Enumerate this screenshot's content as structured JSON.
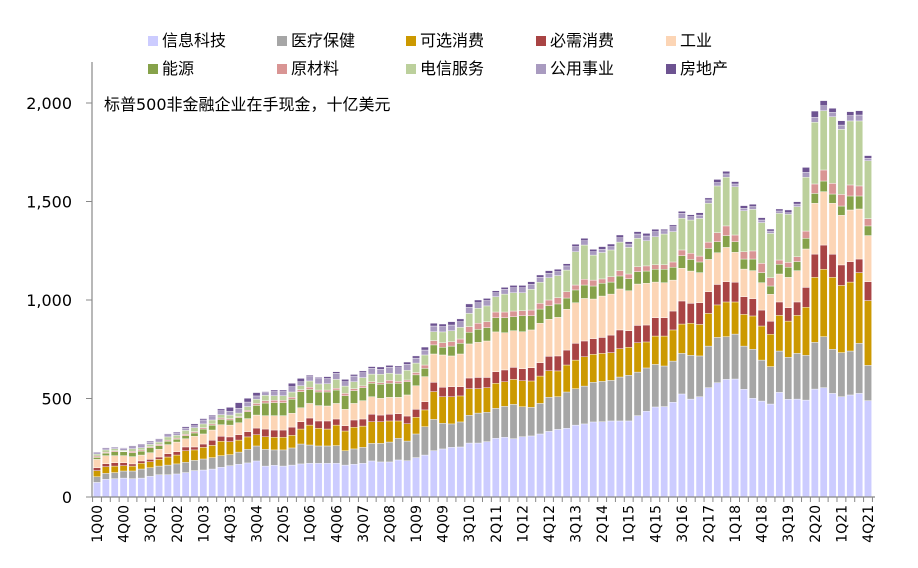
{
  "chart_data": {
    "type": "bar",
    "stacked": true,
    "annotation": "标普500非金融企业在手现金，十亿美元",
    "ylim": [
      0,
      2200
    ],
    "y_ticks": [
      "0",
      "500",
      "1,000",
      "1,500",
      "2,000"
    ],
    "y_tick_values": [
      0,
      500,
      1000,
      1500,
      2000
    ],
    "grid": false,
    "legend_position": "top",
    "categories": [
      "1Q00",
      "2Q00",
      "3Q00",
      "4Q00",
      "1Q01",
      "2Q01",
      "3Q01",
      "4Q01",
      "1Q02",
      "2Q02",
      "3Q02",
      "4Q02",
      "1Q03",
      "2Q03",
      "3Q03",
      "4Q03",
      "1Q04",
      "2Q04",
      "3Q04",
      "4Q04",
      "1Q05",
      "2Q05",
      "3Q05",
      "4Q05",
      "1Q06",
      "2Q06",
      "3Q06",
      "4Q06",
      "1Q07",
      "2Q07",
      "3Q07",
      "4Q07",
      "1Q08",
      "2Q08",
      "3Q08",
      "4Q08",
      "1Q09",
      "2Q09",
      "3Q09",
      "4Q09",
      "1Q10",
      "2Q10",
      "3Q10",
      "4Q10",
      "1Q11",
      "2Q11",
      "3Q11",
      "4Q11",
      "1Q12",
      "2Q12",
      "3Q12",
      "4Q12",
      "1Q13",
      "2Q13",
      "3Q13",
      "4Q13",
      "1Q14",
      "2Q14",
      "3Q14",
      "4Q14",
      "1Q15",
      "2Q15",
      "3Q15",
      "4Q15",
      "1Q16",
      "2Q16",
      "3Q16",
      "4Q16",
      "1Q17",
      "2Q17",
      "3Q17",
      "4Q17",
      "1Q18",
      "2Q18",
      "3Q18",
      "4Q18",
      "1Q19",
      "2Q19",
      "3Q19",
      "4Q19",
      "1Q20",
      "2Q20",
      "3Q20",
      "4Q20",
      "1Q21",
      "2Q21",
      "3Q21",
      "4Q21"
    ],
    "x_tick_labels": [
      "1Q00",
      "4Q00",
      "3Q01",
      "2Q02",
      "1Q03",
      "4Q03",
      "3Q04",
      "2Q05",
      "1Q06",
      "4Q06",
      "3Q07",
      "2Q08",
      "1Q09",
      "4Q09",
      "3Q10",
      "2Q11",
      "1Q12",
      "4Q12",
      "3Q13",
      "2Q14",
      "1Q15",
      "4Q15",
      "3Q16",
      "2Q17",
      "1Q18",
      "4Q18",
      "3Q19",
      "2Q20",
      "1Q21",
      "4Q21"
    ],
    "series": [
      {
        "name": "信息科技",
        "color": "#CCCCFF",
        "values": [
          74,
          90,
          93,
          96,
          93,
          96,
          105,
          113,
          113,
          117,
          124,
          134,
          137,
          142,
          151,
          159,
          166,
          173,
          183,
          157,
          161,
          157,
          162,
          168,
          171,
          171,
          171,
          171,
          162,
          166,
          171,
          183,
          178,
          178,
          188,
          184,
          200,
          213,
          235,
          244,
          252,
          254,
          274,
          274,
          281,
          298,
          303,
          296,
          306,
          310,
          320,
          333,
          343,
          349,
          365,
          371,
          381,
          382,
          386,
          386,
          386,
          413,
          435,
          457,
          459,
          481,
          523,
          497,
          509,
          555,
          580,
          597,
          599,
          547,
          501,
          487,
          472,
          531,
          496,
          497,
          492,
          548,
          555,
          526,
          509,
          518,
          526,
          489
        ]
      },
      {
        "name": "医疗保健",
        "color": "#A6A6A6",
        "values": [
          29,
          30,
          31,
          36,
          39,
          46,
          44,
          44,
          49,
          51,
          52,
          52,
          56,
          58,
          59,
          56,
          62,
          69,
          76,
          85,
          78,
          82,
          87,
          101,
          93,
          88,
          88,
          90,
          73,
          78,
          81,
          89,
          94,
          101,
          110,
          100,
          120,
          144,
          159,
          130,
          119,
          127,
          141,
          152,
          149,
          152,
          157,
          174,
          152,
          145,
          155,
          173,
          166,
          184,
          185,
          192,
          201,
          205,
          206,
          223,
          232,
          221,
          220,
          216,
          206,
          209,
          206,
          222,
          207,
          211,
          230,
          217,
          228,
          219,
          249,
          208,
          190,
          210,
          213,
          232,
          227,
          237,
          259,
          224,
          224,
          223,
          254,
          179
        ]
      },
      {
        "name": "可选消费",
        "color": "#CC9900",
        "values": [
          31,
          34,
          33,
          27,
          25,
          29,
          30,
          34,
          41,
          45,
          59,
          53,
          59,
          62,
          73,
          66,
          61,
          63,
          57,
          64,
          64,
          64,
          64,
          76,
          101,
          90,
          86,
          104,
          100,
          110,
          108,
          110,
          110,
          107,
          88,
          88,
          85,
          85,
          141,
          135,
          138,
          132,
          135,
          124,
          125,
          127,
          125,
          127,
          132,
          134,
          139,
          135,
          131,
          137,
          145,
          149,
          142,
          142,
          141,
          144,
          142,
          149,
          132,
          144,
          152,
          158,
          149,
          163,
          160,
          166,
          165,
          176,
          163,
          161,
          169,
          173,
          164,
          181,
          184,
          193,
          244,
          330,
          342,
          365,
          341,
          350,
          359,
          329
        ]
      },
      {
        "name": "必需消费",
        "color": "#A94444",
        "values": [
          15,
          15,
          17,
          15,
          11,
          12,
          12,
          12,
          17,
          17,
          19,
          15,
          17,
          26,
          25,
          24,
          27,
          27,
          34,
          39,
          37,
          37,
          42,
          37,
          36,
          37,
          41,
          31,
          27,
          37,
          36,
          38,
          34,
          34,
          37,
          39,
          40,
          42,
          47,
          48,
          51,
          47,
          54,
          57,
          52,
          59,
          60,
          61,
          61,
          67,
          68,
          73,
          76,
          76,
          85,
          80,
          80,
          81,
          89,
          95,
          84,
          88,
          86,
          93,
          93,
          96,
          117,
          101,
          110,
          110,
          104,
          103,
          100,
          90,
          88,
          81,
          66,
          68,
          68,
          68,
          101,
          118,
          123,
          117,
          104,
          104,
          69,
          96
        ]
      },
      {
        "name": "工业",
        "color": "#FCD5B5",
        "values": [
          42,
          41,
          36,
          36,
          37,
          30,
          34,
          39,
          46,
          49,
          42,
          54,
          51,
          52,
          59,
          60,
          61,
          66,
          66,
          68,
          73,
          73,
          70,
          71,
          74,
          78,
          76,
          79,
          83,
          84,
          93,
          89,
          85,
          86,
          83,
          107,
          120,
          127,
          144,
          164,
          156,
          166,
          173,
          178,
          185,
          202,
          189,
          186,
          188,
          192,
          200,
          188,
          196,
          207,
          206,
          216,
          201,
          210,
          208,
          208,
          203,
          210,
          212,
          181,
          178,
          157,
          166,
          164,
          153,
          164,
          161,
          174,
          152,
          140,
          142,
          139,
          137,
          142,
          154,
          159,
          195,
          258,
          271,
          259,
          252,
          262,
          254,
          234
        ]
      },
      {
        "name": "能源",
        "color": "#86A24A",
        "values": [
          10,
          13,
          20,
          20,
          20,
          20,
          25,
          18,
          17,
          14,
          15,
          17,
          25,
          24,
          27,
          26,
          26,
          35,
          49,
          64,
          66,
          66,
          71,
          82,
          71,
          69,
          71,
          68,
          69,
          65,
          66,
          68,
          71,
          71,
          71,
          67,
          55,
          42,
          46,
          39,
          50,
          54,
          59,
          66,
          68,
          72,
          76,
          71,
          81,
          72,
          72,
          69,
          68,
          57,
          65,
          68,
          66,
          65,
          61,
          66,
          61,
          63,
          62,
          65,
          68,
          65,
          64,
          59,
          54,
          56,
          56,
          60,
          54,
          51,
          59,
          51,
          42,
          49,
          51,
          46,
          54,
          50,
          54,
          47,
          47,
          71,
          66,
          49
        ]
      },
      {
        "name": "原材料",
        "color": "#D99594",
        "values": [
          7,
          4,
          5,
          2,
          7,
          6,
          5,
          7,
          6,
          6,
          7,
          7,
          7,
          7,
          7,
          7,
          5,
          7,
          10,
          12,
          12,
          12,
          10,
          10,
          11,
          10,
          10,
          9,
          12,
          10,
          9,
          8,
          8,
          15,
          10,
          9,
          12,
          17,
          22,
          23,
          22,
          22,
          29,
          31,
          30,
          29,
          29,
          29,
          26,
          29,
          29,
          29,
          32,
          32,
          25,
          29,
          30,
          22,
          27,
          27,
          24,
          25,
          26,
          23,
          23,
          27,
          29,
          31,
          30,
          32,
          46,
          49,
          34,
          37,
          41,
          47,
          42,
          22,
          25,
          25,
          37,
          48,
          56,
          54,
          59,
          56,
          51,
          37
        ]
      },
      {
        "name": "电信服务",
        "color": "#BCD09C",
        "values": [
          10,
          12,
          10,
          5,
          13,
          11,
          12,
          12,
          16,
          14,
          20,
          20,
          19,
          20,
          17,
          18,
          18,
          19,
          21,
          27,
          23,
          23,
          27,
          20,
          32,
          31,
          32,
          45,
          37,
          35,
          42,
          39,
          43,
          36,
          37,
          49,
          48,
          51,
          45,
          55,
          56,
          59,
          67,
          76,
          80,
          78,
          91,
          93,
          91,
          105,
          107,
          113,
          112,
          110,
          169,
          174,
          127,
          134,
          136,
          145,
          135,
          144,
          128,
          142,
          156,
          154,
          161,
          169,
          191,
          197,
          237,
          247,
          245,
          208,
          211,
          207,
          225,
          237,
          244,
          254,
          273,
          313,
          301,
          338,
          330,
          325,
          330,
          294
        ]
      },
      {
        "name": "公用事业",
        "color": "#A99BC0",
        "values": [
          10,
          6,
          9,
          10,
          10,
          10,
          10,
          12,
          11,
          12,
          12,
          10,
          20,
          17,
          20,
          19,
          24,
          23,
          17,
          14,
          21,
          21,
          27,
          20,
          22,
          27,
          26,
          31,
          22,
          29,
          25,
          29,
          25,
          30,
          32,
          30,
          25,
          25,
          29,
          27,
          29,
          29,
          31,
          28,
          27,
          20,
          24,
          25,
          25,
          25,
          25,
          22,
          20,
          21,
          26,
          22,
          17,
          16,
          17,
          22,
          17,
          22,
          24,
          26,
          16,
          25,
          25,
          17,
          17,
          17,
          17,
          17,
          14,
          12,
          14,
          13,
          12,
          12,
          8,
          13,
          25,
          25,
          25,
          23,
          22,
          27,
          30,
          12
        ]
      },
      {
        "name": "房地产",
        "color": "#6D5391",
        "values": [
          2,
          5,
          2,
          3,
          5,
          7,
          6,
          5,
          5,
          5,
          7,
          9,
          7,
          7,
          9,
          20,
          29,
          19,
          17,
          5,
          8,
          8,
          17,
          17,
          7,
          6,
          10,
          8,
          12,
          8,
          9,
          9,
          12,
          10,
          9,
          12,
          11,
          15,
          14,
          13,
          17,
          14,
          17,
          14,
          11,
          10,
          10,
          12,
          12,
          14,
          12,
          14,
          12,
          11,
          12,
          12,
          12,
          14,
          13,
          14,
          12,
          12,
          13,
          12,
          8,
          9,
          10,
          10,
          12,
          10,
          16,
          13,
          12,
          14,
          12,
          12,
          10,
          10,
          14,
          12,
          25,
          32,
          26,
          20,
          22,
          20,
          22,
          14
        ]
      }
    ]
  }
}
